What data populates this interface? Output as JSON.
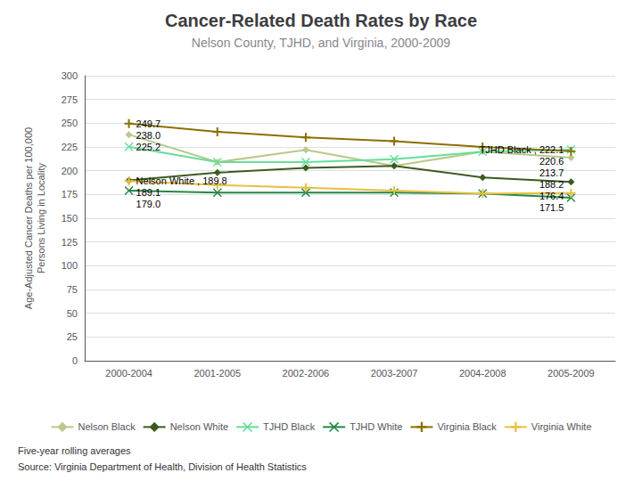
{
  "chart_data": {
    "type": "line",
    "title": "Cancer-Related Death Rates by Race",
    "subtitle": "Nelson County, TJHD, and Virginia, 2000-2009",
    "ylabel": "Age-Adjusted Cancer Deaths per 100,000\nPersons Living in Locality",
    "categories": [
      "2000-2004",
      "2001-2005",
      "2002-2006",
      "2003-2007",
      "2004-2008",
      "2005-2009"
    ],
    "series": [
      {
        "name": "Nelson Black",
        "color": "#b8c98a",
        "marker": "diamond",
        "values": [
          238.0,
          209.0,
          222.0,
          205.0,
          220.0,
          213.7
        ]
      },
      {
        "name": "Nelson White",
        "color": "#3d5a1e",
        "marker": "diamond",
        "values": [
          189.8,
          198.0,
          203.0,
          205.0,
          193.0,
          188.2
        ]
      },
      {
        "name": "TJHD Black",
        "color": "#66dd99",
        "marker": "x",
        "values": [
          225.2,
          209.0,
          209.0,
          212.0,
          220.0,
          222.1
        ]
      },
      {
        "name": "TJHD White",
        "color": "#228844",
        "marker": "x",
        "values": [
          179.0,
          177.0,
          177.0,
          177.0,
          176.0,
          171.5
        ]
      },
      {
        "name": "Virginia Black",
        "color": "#8b7000",
        "marker": "plus",
        "values": [
          249.7,
          241.0,
          235.0,
          231.0,
          225.0,
          220.6
        ]
      },
      {
        "name": "Virginia White",
        "color": "#e8c040",
        "marker": "plus",
        "values": [
          189.1,
          185.0,
          182.0,
          179.0,
          176.0,
          176.4
        ]
      }
    ],
    "ylim": [
      0,
      300
    ],
    "yticks": [
      0,
      25,
      50,
      75,
      100,
      125,
      150,
      175,
      200,
      225,
      250,
      275,
      300
    ],
    "grid": true,
    "legend": "bottom",
    "annotations": [
      {
        "text": "249.7",
        "x": "2000-2004",
        "y": 249.7
      },
      {
        "text": "238.0",
        "x": "2000-2004",
        "y": 238.0
      },
      {
        "text": "225.2",
        "x": "2000-2004",
        "y": 225.2
      },
      {
        "text": "Nelson White , 189.8",
        "x": "2000-2004",
        "y": 189.8
      },
      {
        "text": "189.1",
        "x": "2000-2004",
        "y": 189.1
      },
      {
        "text": "179.0",
        "x": "2000-2004",
        "y": 179.0
      },
      {
        "text": "TJHD Black , 222.1",
        "x": "2005-2009",
        "y": 222.1
      },
      {
        "text": "220.6",
        "x": "2005-2009",
        "y": 220.6
      },
      {
        "text": "213.7",
        "x": "2005-2009",
        "y": 213.7
      },
      {
        "text": "188.2",
        "x": "2005-2009",
        "y": 188.2
      },
      {
        "text": "176.4",
        "x": "2005-2009",
        "y": 176.4
      },
      {
        "text": "171.5",
        "x": "2005-2009",
        "y": 171.5
      }
    ],
    "footer": [
      "Five-year rolling averages",
      "Source: Virginia Department of Health, Division of Health Statistics"
    ]
  }
}
